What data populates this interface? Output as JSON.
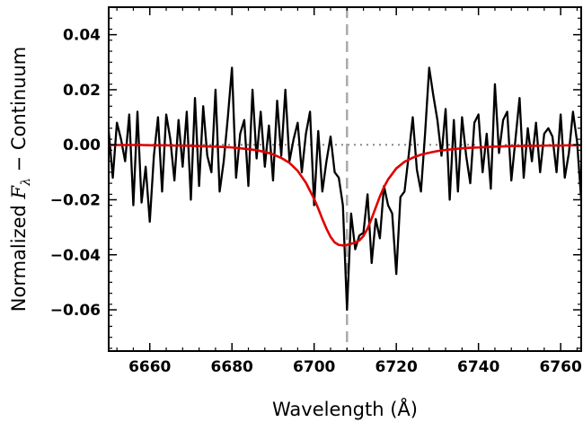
{
  "chart_data": {
    "type": "line",
    "title": "",
    "xlabel": "Wavelength (Å)",
    "ylabel": {
      "prefix": "Normalized ",
      "symbol": "F",
      "subscript": "λ",
      "suffix": " − Continuum"
    },
    "xlim": [
      6650,
      6765
    ],
    "ylim": [
      -0.075,
      0.05
    ],
    "xticks": [
      6660,
      6680,
      6700,
      6720,
      6740,
      6760
    ],
    "xtick_labels": [
      "6660",
      "6680",
      "6700",
      "6720",
      "6740",
      "6760"
    ],
    "yticks": [
      -0.06,
      -0.04,
      -0.02,
      0.0,
      0.02,
      0.04
    ],
    "ytick_labels": [
      "−0.06",
      "−0.04",
      "−0.02",
      "0.00",
      "0.02",
      "0.04"
    ],
    "reference_line": {
      "x": 6708,
      "style": "dashed",
      "color": "#aaaaaa"
    },
    "zero_line": {
      "y": 0.0,
      "style": "dotted",
      "color": "#888888"
    },
    "series": [
      {
        "color": "#000000",
        "style": "solid",
        "x": [
          6650,
          6651,
          6652,
          6653,
          6654,
          6655,
          6656,
          6657,
          6658,
          6659,
          6660,
          6661,
          6662,
          6663,
          6664,
          6665,
          6666,
          6667,
          6668,
          6669,
          6670,
          6671,
          6672,
          6673,
          6674,
          6675,
          6676,
          6677,
          6678,
          6679,
          6680,
          6681,
          6682,
          6683,
          6684,
          6685,
          6686,
          6687,
          6688,
          6689,
          6690,
          6691,
          6692,
          6693,
          6694,
          6695,
          6696,
          6697,
          6698,
          6699,
          6700,
          6701,
          6702,
          6703,
          6704,
          6705,
          6706,
          6707,
          6708,
          6709,
          6710,
          6711,
          6712,
          6713,
          6714,
          6715,
          6716,
          6717,
          6718,
          6719,
          6720,
          6721,
          6722,
          6723,
          6724,
          6725,
          6726,
          6727,
          6728,
          6729,
          6730,
          6731,
          6732,
          6733,
          6734,
          6735,
          6736,
          6737,
          6738,
          6739,
          6740,
          6741,
          6742,
          6743,
          6744,
          6745,
          6746,
          6747,
          6748,
          6749,
          6750,
          6751,
          6752,
          6753,
          6754,
          6755,
          6756,
          6757,
          6758,
          6759,
          6760,
          6761,
          6762,
          6763,
          6764,
          6765
        ],
        "y": [
          0.005,
          -0.012,
          0.008,
          0.002,
          -0.006,
          0.011,
          -0.022,
          0.012,
          -0.021,
          -0.008,
          -0.028,
          -0.004,
          0.01,
          -0.017,
          0.011,
          0.002,
          -0.013,
          0.009,
          -0.008,
          0.012,
          -0.02,
          0.017,
          -0.015,
          0.014,
          -0.004,
          -0.01,
          0.02,
          -0.017,
          -0.006,
          0.01,
          0.028,
          -0.012,
          0.004,
          0.009,
          -0.015,
          0.02,
          -0.005,
          0.012,
          -0.008,
          0.007,
          -0.013,
          0.016,
          -0.004,
          0.02,
          -0.006,
          0.002,
          0.008,
          -0.01,
          0.004,
          0.012,
          -0.022,
          0.005,
          -0.017,
          -0.006,
          0.003,
          -0.01,
          -0.012,
          -0.022,
          -0.06,
          -0.025,
          -0.038,
          -0.033,
          -0.032,
          -0.018,
          -0.043,
          -0.027,
          -0.034,
          -0.015,
          -0.022,
          -0.025,
          -0.047,
          -0.019,
          -0.017,
          -0.004,
          0.01,
          -0.009,
          -0.017,
          0.004,
          0.028,
          0.018,
          0.009,
          -0.004,
          0.013,
          -0.02,
          0.009,
          -0.017,
          0.01,
          -0.004,
          -0.014,
          0.008,
          0.011,
          -0.01,
          0.004,
          -0.016,
          0.022,
          -0.003,
          0.009,
          0.012,
          -0.013,
          0.002,
          0.017,
          -0.012,
          0.006,
          -0.006,
          0.008,
          -0.01,
          0.004,
          0.006,
          0.003,
          -0.01,
          0.011,
          -0.012,
          -0.003,
          0.012,
          0.001,
          -0.02
        ]
      },
      {
        "color": "#e00000",
        "style": "solid",
        "x": [
          6650,
          6652,
          6654,
          6656,
          6658,
          6660,
          6662,
          6664,
          6666,
          6668,
          6670,
          6672,
          6674,
          6676,
          6678,
          6680,
          6682,
          6684,
          6686,
          6688,
          6690,
          6692,
          6694,
          6696,
          6698,
          6700,
          6701,
          6702,
          6703,
          6704,
          6705,
          6706,
          6707,
          6708,
          6709,
          6710,
          6711,
          6712,
          6713,
          6714,
          6715,
          6716,
          6717,
          6718,
          6720,
          6722,
          6724,
          6726,
          6728,
          6730,
          6732,
          6734,
          6736,
          6738,
          6740,
          6742,
          6744,
          6746,
          6748,
          6750,
          6752,
          6754,
          6756,
          6758,
          6760,
          6762,
          6764,
          6765
        ],
        "y": [
          -0.0001,
          -0.0001,
          -0.0001,
          -0.0001,
          -0.0001,
          -0.0002,
          -0.0002,
          -0.0002,
          -0.0003,
          -0.0003,
          -0.0004,
          -0.0005,
          -0.0006,
          -0.0007,
          -0.0008,
          -0.001,
          -0.0013,
          -0.0016,
          -0.002,
          -0.0026,
          -0.0035,
          -0.0048,
          -0.0066,
          -0.0095,
          -0.0138,
          -0.0197,
          -0.0232,
          -0.027,
          -0.0305,
          -0.0335,
          -0.0355,
          -0.0364,
          -0.0366,
          -0.0364,
          -0.036,
          -0.0356,
          -0.0348,
          -0.0332,
          -0.0305,
          -0.0268,
          -0.0228,
          -0.0188,
          -0.0154,
          -0.0126,
          -0.0086,
          -0.0062,
          -0.0047,
          -0.0036,
          -0.0029,
          -0.0023,
          -0.0019,
          -0.0016,
          -0.0013,
          -0.0011,
          -0.001,
          -0.0008,
          -0.0007,
          -0.0006,
          -0.0005,
          -0.0005,
          -0.0004,
          -0.0004,
          -0.0003,
          -0.0003,
          -0.0003,
          -0.0002,
          -0.0002,
          -0.0002
        ]
      }
    ]
  }
}
